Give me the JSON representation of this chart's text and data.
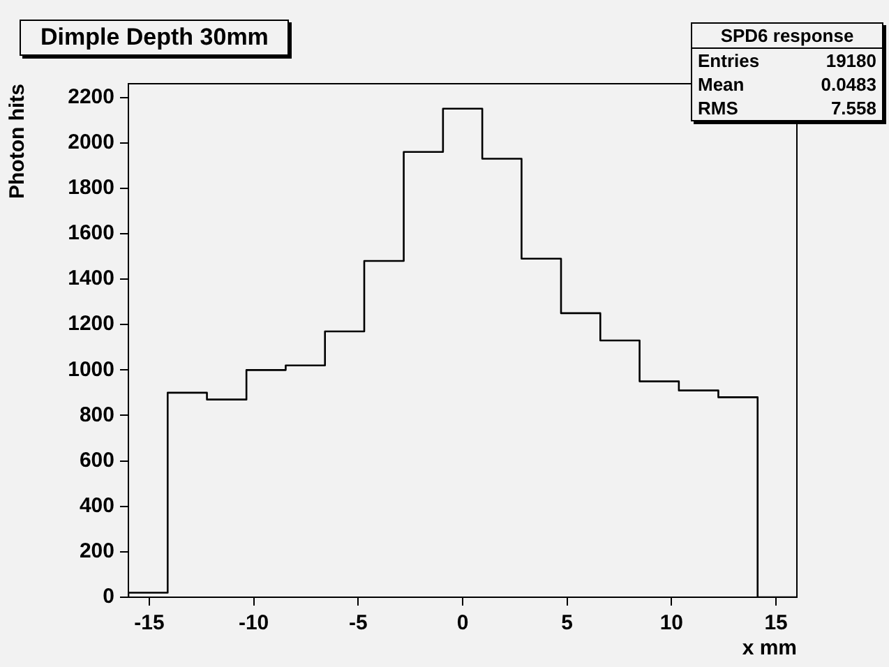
{
  "chart_data": {
    "type": "histogram",
    "title": "Dimple Depth 30mm",
    "xlabel": "x mm",
    "ylabel": "Photon hits",
    "annotations": [
      "SPD6 response",
      "Entries 19180",
      "Mean 0.0483",
      "RMS 7.558"
    ],
    "bins": [
      -16,
      -14.12,
      -12.24,
      -10.35,
      -8.47,
      -6.59,
      -4.71,
      -2.82,
      -0.94,
      0.94,
      2.82,
      4.71,
      6.59,
      8.47,
      10.35,
      12.24,
      14.12,
      16
    ],
    "values": [
      20,
      900,
      870,
      1000,
      1020,
      1170,
      1480,
      1960,
      2150,
      1930,
      1490,
      1250,
      1130,
      950,
      910,
      880,
      0
    ],
    "color": "#000000",
    "xlim": [
      -16,
      16
    ],
    "xticks": [
      -15,
      -10,
      -5,
      0,
      5,
      10,
      15
    ],
    "ylim": [
      0,
      2260
    ],
    "yticks": [
      0,
      200,
      400,
      600,
      800,
      1000,
      1200,
      1400,
      1600,
      1800,
      2000,
      2200
    ],
    "grid": false,
    "legend": false
  }
}
